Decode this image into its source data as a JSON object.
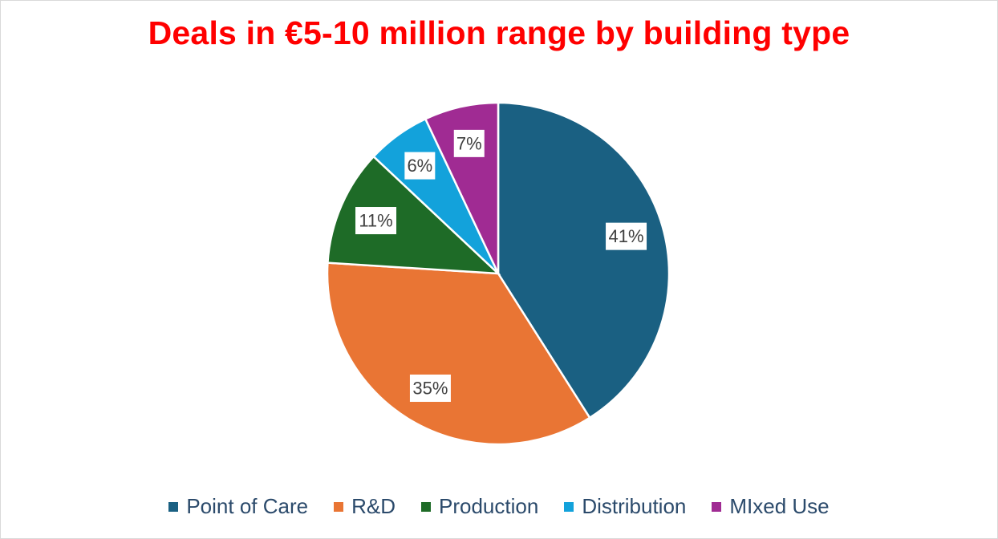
{
  "chart_data": {
    "type": "pie",
    "title": "Deals in €5-10 million range by building type",
    "categories": [
      "Point of Care",
      "R&D",
      "Production",
      "Distribution",
      "MIxed Use"
    ],
    "values": [
      41,
      35,
      11,
      6,
      7
    ],
    "labels": [
      "41%",
      "35%",
      "11%",
      "6%",
      "7%"
    ],
    "colors": [
      "#1a6082",
      "#e97534",
      "#1e6b27",
      "#13a2db",
      "#a02b93"
    ],
    "legend_position": "bottom"
  }
}
